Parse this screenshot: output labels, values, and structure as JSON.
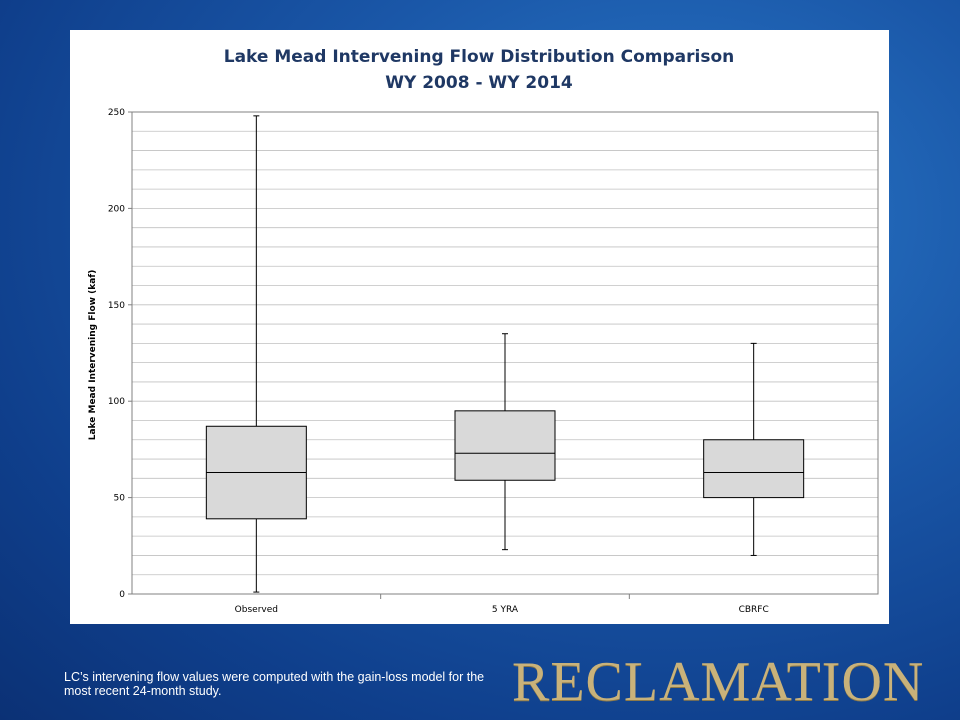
{
  "chart_data": {
    "type": "box",
    "title": "Lake Mead Intervening Flow Distribution Comparison",
    "subtitle": "WY 2008 - WY 2014",
    "ylabel": "Lake Mead Intervening Flow (kaf)",
    "xlabel": "",
    "ylim": [
      0,
      250
    ],
    "yticks": [
      0,
      50,
      100,
      150,
      200,
      250
    ],
    "minor_grid_step": 10,
    "grid": true,
    "legend": "none",
    "box_fill": "#d9d9d9",
    "categories": [
      "Observed",
      "5 YRA",
      "CBRFC"
    ],
    "series": [
      {
        "min": 1,
        "q1": 39,
        "median": 63,
        "q3": 87,
        "max": 248
      },
      {
        "min": 23,
        "q1": 59,
        "median": 73,
        "q3": 95,
        "max": 135
      },
      {
        "min": 20,
        "q1": 50,
        "median": 63,
        "q3": 80,
        "max": 130
      }
    ]
  },
  "footnote": "LC’s intervening flow values were computed with the gain-loss model for the most recent 24-month study.",
  "brand": "RECLAMATION"
}
